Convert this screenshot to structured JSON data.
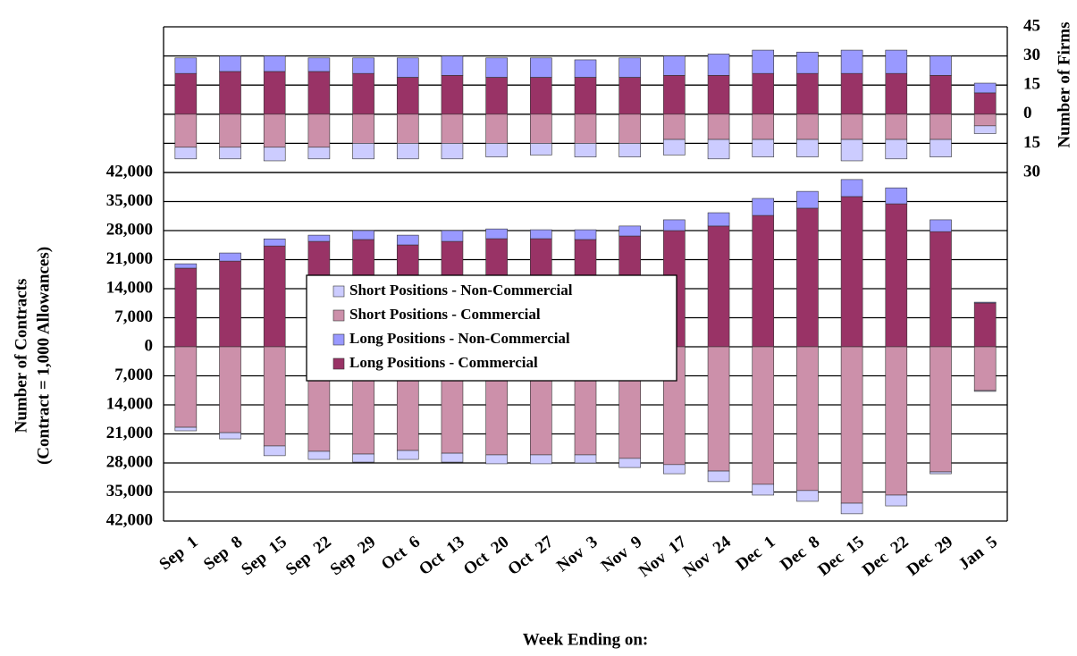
{
  "chart_data": [
    {
      "type": "bar",
      "stacked": true,
      "axis_side": "right",
      "y_label": "Number of Firms",
      "categories": [
        "Sep  1",
        "Sep  8",
        "Sep  15",
        "Sep  22",
        "Sep  29",
        "Oct  6",
        "Oct  13",
        "Oct  20",
        "Oct  27",
        "Nov  3",
        "Nov  9",
        "Nov  17",
        "Nov  24",
        "Dec  1",
        "Dec  8",
        "Dec  15",
        "Dec  22",
        "Dec  29",
        "Jan  5"
      ],
      "series": [
        {
          "color": "#ccccff",
          "values": [
            -6,
            -6,
            -7,
            -6,
            -8,
            -8,
            -8,
            -7,
            -6,
            -7,
            -7,
            -8,
            -10,
            -9,
            -9,
            -11,
            -10,
            -9,
            -4
          ]
        },
        {
          "color": "#cc90aa",
          "values": [
            -17,
            -17,
            -17,
            -17,
            -15,
            -15,
            -15,
            -15,
            -15,
            -15,
            -15,
            -13,
            -13,
            -13,
            -13,
            -13,
            -13,
            -13,
            -6
          ]
        },
        {
          "color": "#9999ff",
          "values": [
            8,
            8,
            8,
            7,
            8,
            10,
            10,
            10,
            10,
            9,
            10,
            10,
            11,
            12,
            11,
            12,
            12,
            10,
            5
          ]
        },
        {
          "color": "#993366",
          "values": [
            21,
            22,
            22,
            22,
            21,
            19,
            20,
            19,
            19,
            19,
            19,
            20,
            20,
            21,
            21,
            21,
            21,
            20,
            11
          ]
        }
      ],
      "ylim": [
        -30,
        45
      ],
      "yticks": [
        {
          "value": -30,
          "label": "30"
        },
        {
          "value": -15,
          "label": "15"
        },
        0,
        15,
        30,
        45
      ],
      "grid": true
    },
    {
      "type": "bar",
      "stacked": true,
      "axis_side": "left",
      "y_label": [
        "Number of Contracts",
        "(Contract = 1,000 Allowances)"
      ],
      "x_label": "Week Ending on:",
      "categories": [
        "Sep  1",
        "Sep  8",
        "Sep  15",
        "Sep  22",
        "Sep  29",
        "Oct  6",
        "Oct  13",
        "Oct  20",
        "Oct  27",
        "Nov  3",
        "Nov  9",
        "Nov  17",
        "Nov  24",
        "Dec  1",
        "Dec  8",
        "Dec  15",
        "Dec  22",
        "Dec  29",
        "Jan  5"
      ],
      "series": [
        {
          "name": "Short Positions - Non-Commercial",
          "color": "#ccccff",
          "values": [
            -850,
            -1500,
            -2350,
            -1950,
            -1950,
            -2150,
            -2150,
            -2150,
            -2150,
            -1950,
            -2200,
            -2200,
            -2550,
            -2600,
            -2600,
            -2550,
            -2600,
            -450,
            -200
          ]
        },
        {
          "name": "Short Positions - Commercial",
          "color": "#cc90aa",
          "values": [
            -19400,
            -20700,
            -23900,
            -25200,
            -25850,
            -25000,
            -25650,
            -26050,
            -26050,
            -26050,
            -26900,
            -28400,
            -29950,
            -33150,
            -34650,
            -37700,
            -35750,
            -30150,
            -10550
          ]
        },
        {
          "name": "Long Positions - Non-Commercial",
          "color": "#9999ff",
          "values": [
            1050,
            1950,
            1700,
            1500,
            2150,
            2350,
            2600,
            2350,
            2150,
            2350,
            2400,
            2600,
            3200,
            4100,
            4050,
            4100,
            3850,
            2850,
            200
          ]
        },
        {
          "name": "Long Positions - Commercial",
          "color": "#993366",
          "values": [
            18950,
            20650,
            24300,
            25400,
            25850,
            24550,
            25400,
            26050,
            26050,
            25850,
            26700,
            28000,
            29100,
            31650,
            33400,
            36200,
            34450,
            27750,
            10550
          ]
        }
      ],
      "ylim": [
        -42000,
        42000
      ],
      "yticks": [
        {
          "value": -42000,
          "label": "42,000"
        },
        {
          "value": -35000,
          "label": "35,000"
        },
        {
          "value": -28000,
          "label": "28,000"
        },
        {
          "value": -21000,
          "label": "21,000"
        },
        {
          "value": -14000,
          "label": "14,000"
        },
        {
          "value": -7000,
          "label": "7,000"
        },
        0,
        {
          "value": 7000,
          "label": "7,000"
        },
        {
          "value": 14000,
          "label": "14,000"
        },
        {
          "value": 21000,
          "label": "21,000"
        },
        {
          "value": 28000,
          "label": "28,000"
        },
        {
          "value": 35000,
          "label": "35,000"
        },
        {
          "value": 42000,
          "label": "42,000"
        }
      ],
      "grid": true,
      "legend": "center"
    }
  ]
}
